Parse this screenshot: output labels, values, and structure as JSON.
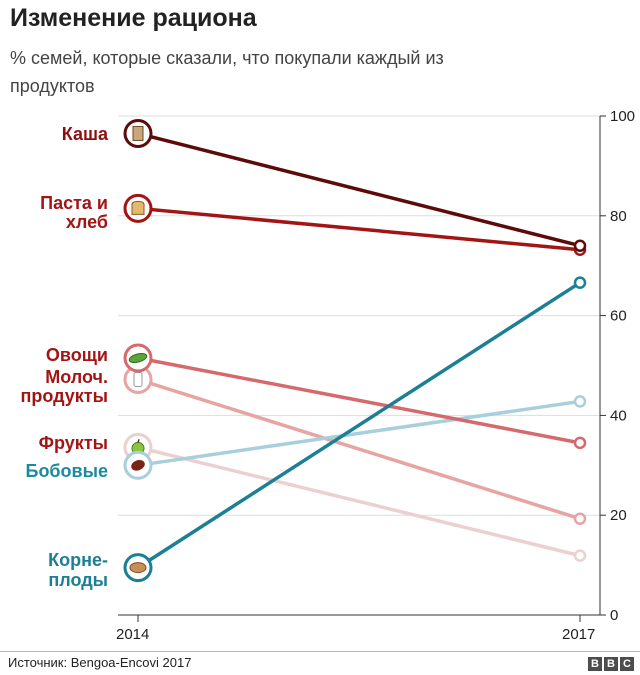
{
  "title": "Изменение рациона",
  "subtitle": "% семей, которые сказали, что покупали каждый из продуктов",
  "source": "Источник: Bengoa-Encovi 2017",
  "brand": [
    "B",
    "B",
    "C"
  ],
  "chart_data": {
    "type": "line",
    "x": [
      "2014",
      "2017"
    ],
    "ylim": [
      0,
      100
    ],
    "yticks": [
      0,
      20,
      40,
      60,
      80,
      100
    ],
    "grid": true,
    "series": [
      {
        "name": "Каша",
        "label_lines": [
          "Каша"
        ],
        "values": [
          96.5,
          74
        ],
        "color": "#5c0a0a",
        "label_color": "#8b1010",
        "icon": "cereal-box-icon"
      },
      {
        "name": "Паста и хлеб",
        "label_lines": [
          "Паста и",
          "хлеб"
        ],
        "values": [
          81.5,
          73.2
        ],
        "color": "#a31515",
        "label_color": "#a31515",
        "icon": "bread-icon"
      },
      {
        "name": "Овощи",
        "label_lines": [
          "Овощи"
        ],
        "values": [
          51.5,
          34.5
        ],
        "color": "#d5696d",
        "label_color": "#a31515",
        "icon": "vegetable-icon"
      },
      {
        "name": "Молоч. продукты",
        "label_lines": [
          "Молоч.",
          "продукты"
        ],
        "values": [
          47.2,
          19.3
        ],
        "color": "#e8a3a3",
        "label_color": "#a31515",
        "icon": "milk-bottle-icon"
      },
      {
        "name": "Фрукты",
        "label_lines": [
          "Фрукты"
        ],
        "values": [
          33.6,
          11.9
        ],
        "color": "#ecd0d0",
        "label_color": "#a31515",
        "icon": "apple-icon"
      },
      {
        "name": "Бобовые",
        "label_lines": [
          "Бобовые"
        ],
        "values": [
          30,
          42.8
        ],
        "color": "#a7cfdc",
        "label_color": "#1b8aa0",
        "icon": "bean-icon"
      },
      {
        "name": "Корне-плоды",
        "label_lines": [
          "Корне-",
          "плоды"
        ],
        "values": [
          9.5,
          66.6
        ],
        "color": "#1b7f95",
        "label_color": "#1b7f95",
        "icon": "potato-icon"
      }
    ]
  }
}
